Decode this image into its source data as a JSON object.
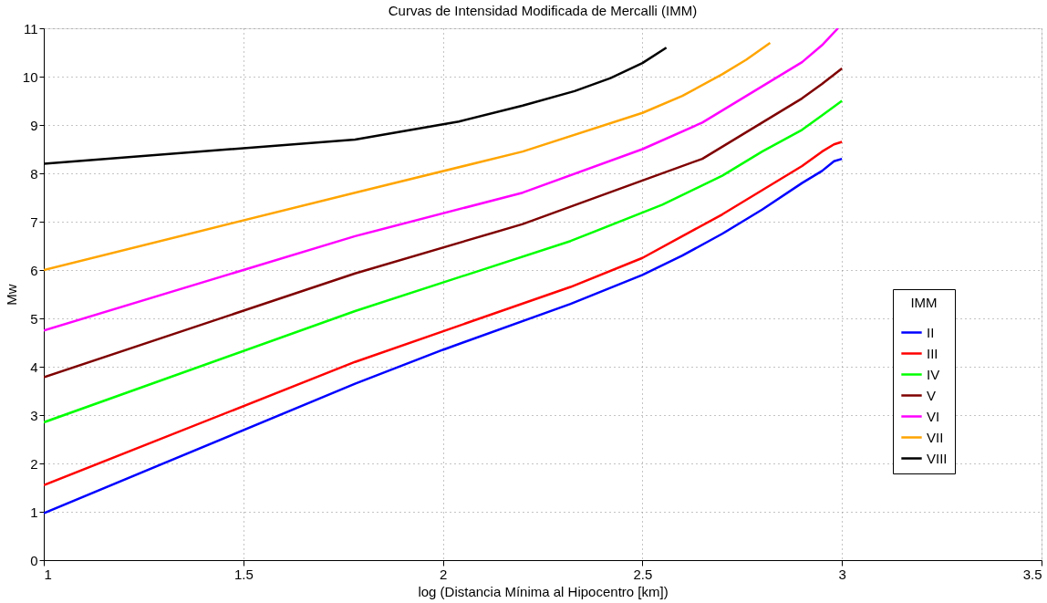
{
  "chart_data": {
    "type": "line",
    "title": "Curvas de Intensidad Modificada de Mercalli (IMM)",
    "xlabel": "log (Distancia Mínima al Hipocentro [km])",
    "ylabel": "Mw",
    "legend_title": "IMM",
    "xlim": [
      1,
      3.5
    ],
    "xticks": [
      1,
      1.5,
      2,
      2.5,
      3,
      3.5
    ],
    "ylim": [
      0,
      11
    ],
    "yticks": [
      0,
      1,
      2,
      3,
      4,
      5,
      6,
      7,
      8,
      9,
      10,
      11
    ],
    "grid": true,
    "legend": "bottom right",
    "marker": "none",
    "line_style": "solid",
    "series": [
      {
        "name": "II",
        "color": "#0000ff",
        "x": [
          1,
          1.78,
          2,
          2.32,
          2.5,
          2.6,
          2.7,
          2.8,
          2.9,
          2.95,
          2.98,
          3.0
        ],
        "values": [
          0.97,
          3.65,
          4.35,
          5.3,
          5.9,
          6.3,
          6.75,
          7.25,
          7.8,
          8.05,
          8.25,
          8.3
        ]
      },
      {
        "name": "III",
        "color": "#ff0000",
        "x": [
          1,
          1.78,
          2.32,
          2.5,
          2.6,
          2.7,
          2.8,
          2.9,
          2.95,
          2.98,
          3.0
        ],
        "values": [
          1.55,
          4.1,
          5.65,
          6.25,
          6.7,
          7.15,
          7.65,
          8.15,
          8.45,
          8.6,
          8.65
        ]
      },
      {
        "name": "IV",
        "color": "#00ff00",
        "x": [
          1,
          1.78,
          2.32,
          2.55,
          2.7,
          2.8,
          2.9,
          2.95,
          3.0
        ],
        "values": [
          2.85,
          5.15,
          6.6,
          7.35,
          7.95,
          8.45,
          8.9,
          9.2,
          9.5
        ]
      },
      {
        "name": "V",
        "color": "#7f0000",
        "x": [
          1,
          1.78,
          2.2,
          2.5,
          2.65,
          2.8,
          2.9,
          2.95,
          3.0
        ],
        "values": [
          3.78,
          5.93,
          6.95,
          7.85,
          8.3,
          9.05,
          9.55,
          9.85,
          10.17
        ]
      },
      {
        "name": "VI",
        "color": "#ff00ff",
        "x": [
          1,
          1.78,
          2.2,
          2.5,
          2.65,
          2.8,
          2.9,
          2.95,
          2.99
        ],
        "values": [
          4.75,
          6.7,
          7.6,
          8.5,
          9.05,
          9.8,
          10.3,
          10.65,
          11.0
        ]
      },
      {
        "name": "VII",
        "color": "#ffa500",
        "x": [
          1,
          1.78,
          2.2,
          2.5,
          2.6,
          2.7,
          2.76,
          2.82
        ],
        "values": [
          6.0,
          7.6,
          8.45,
          9.25,
          9.6,
          10.05,
          10.35,
          10.7
        ]
      },
      {
        "name": "VIII",
        "color": "#000000",
        "x": [
          1,
          1.78,
          2.04,
          2.2,
          2.33,
          2.42,
          2.5,
          2.56
        ],
        "values": [
          8.2,
          8.7,
          9.07,
          9.4,
          9.7,
          9.97,
          10.28,
          10.6
        ]
      }
    ]
  }
}
